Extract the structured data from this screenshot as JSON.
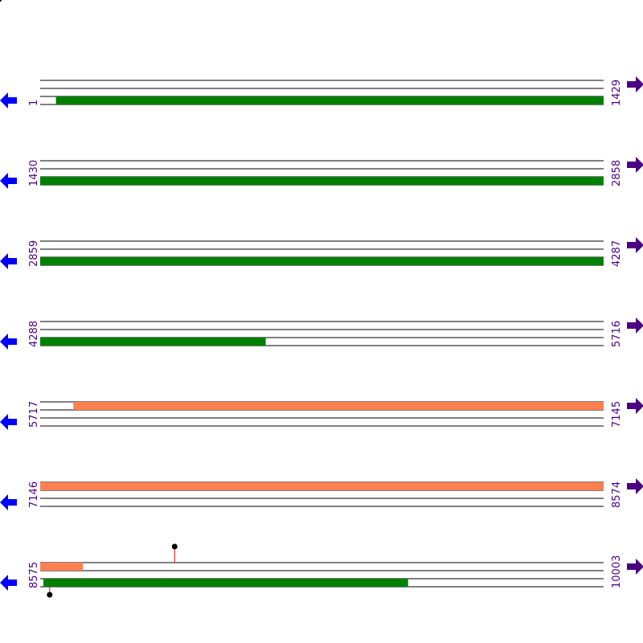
{
  "map": {
    "total_length": 10003,
    "bp_per_row": 1429,
    "rows": [
      {
        "start": "1",
        "end": "1429"
      },
      {
        "start": "1430",
        "end": "2858"
      },
      {
        "start": "2859",
        "end": "4287"
      },
      {
        "start": "4288",
        "end": "5716"
      },
      {
        "start": "5717",
        "end": "7145"
      },
      {
        "start": "7146",
        "end": "8574"
      },
      {
        "start": "8575",
        "end": "10003"
      }
    ],
    "features": [
      {
        "track": 2,
        "start": 41,
        "end": 4860,
        "color": "#008000"
      },
      {
        "track": 0,
        "start": 5801,
        "end": 8683,
        "color": "#ff7f50"
      },
      {
        "track": 2,
        "start": 8583,
        "end": 9508,
        "color": "#008000"
      }
    ],
    "markers": [
      {
        "position": 8916,
        "side": "top"
      },
      {
        "position": 8599,
        "side": "bottom"
      }
    ],
    "colors": {
      "left_arrow": "#0000ff",
      "right_arrow": "#4b0082",
      "label": "#4b0082",
      "marker_stem": "#ff0000",
      "marker_head": "#000000"
    },
    "icons": {
      "left": "arrow-left-icon",
      "right": "arrow-right-icon"
    }
  }
}
